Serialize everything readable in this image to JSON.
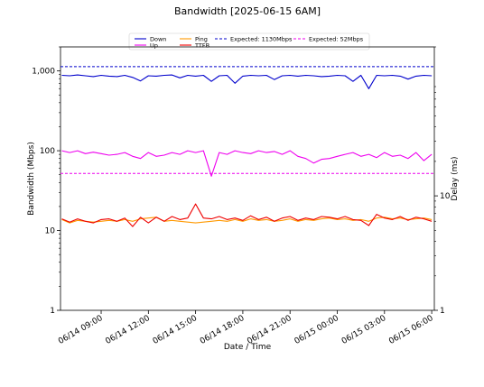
{
  "chart_data": {
    "type": "line",
    "title": "Bandwidth [2025-06-15 6AM]",
    "xlabel": "Date / Time",
    "ylabel": "Bandwidth (Mbps)",
    "y2label": "Delay (ms)",
    "y_scale": "log",
    "y2_scale": "log",
    "ylim": [
      1,
      2000
    ],
    "y2lim": [
      1,
      200
    ],
    "xlim": [
      "2025-06-14 06:25",
      "2025-06-15 06:10"
    ],
    "x_ticks": [
      "06/14 09:00",
      "06/14 12:00",
      "06/14 15:00",
      "06/14 18:00",
      "06/14 21:00",
      "06/15 00:00",
      "06/15 03:00",
      "06/15 06:00"
    ],
    "y_ticks": [
      "1",
      "10",
      "100",
      "1,000"
    ],
    "y2_ticks": [
      "1",
      "10"
    ],
    "grid": false,
    "legend_position": "top",
    "times": [
      "06/14 06:30",
      "06/14 07:00",
      "06/14 07:30",
      "06/14 08:00",
      "06/14 08:30",
      "06/14 09:00",
      "06/14 09:30",
      "06/14 10:00",
      "06/14 10:30",
      "06/14 11:00",
      "06/14 11:30",
      "06/14 12:00",
      "06/14 12:30",
      "06/14 13:00",
      "06/14 13:30",
      "06/14 14:00",
      "06/14 14:30",
      "06/14 15:00",
      "06/14 15:30",
      "06/14 16:00",
      "06/14 16:30",
      "06/14 17:00",
      "06/14 17:30",
      "06/14 18:00",
      "06/14 18:30",
      "06/14 19:00",
      "06/14 19:30",
      "06/14 20:00",
      "06/14 20:30",
      "06/14 21:00",
      "06/14 21:30",
      "06/14 22:00",
      "06/14 22:30",
      "06/14 23:00",
      "06/14 23:30",
      "06/15 00:00",
      "06/15 00:30",
      "06/15 01:00",
      "06/15 01:30",
      "06/15 02:00",
      "06/15 02:30",
      "06/15 03:00",
      "06/15 03:30",
      "06/15 04:00",
      "06/15 04:30",
      "06/15 05:00",
      "06/15 05:30",
      "06/15 06:00"
    ],
    "series": [
      {
        "name": "Down",
        "axis": "left",
        "color": "#0000cc",
        "style": "solid",
        "values": [
          880,
          870,
          890,
          870,
          850,
          880,
          860,
          850,
          880,
          830,
          750,
          870,
          860,
          880,
          890,
          820,
          880,
          860,
          880,
          740,
          870,
          880,
          700,
          860,
          880,
          870,
          880,
          780,
          870,
          880,
          860,
          880,
          870,
          850,
          860,
          880,
          870,
          740,
          880,
          600,
          880,
          870,
          880,
          860,
          790,
          860,
          880,
          870
        ]
      },
      {
        "name": "Up",
        "axis": "left",
        "color": "#ee00ee",
        "style": "solid",
        "values": [
          100,
          95,
          100,
          92,
          96,
          92,
          88,
          90,
          95,
          85,
          80,
          95,
          85,
          88,
          95,
          90,
          100,
          95,
          100,
          48,
          95,
          90,
          100,
          95,
          92,
          100,
          95,
          98,
          90,
          100,
          85,
          80,
          70,
          78,
          80,
          85,
          90,
          95,
          85,
          90,
          82,
          95,
          85,
          88,
          80,
          95,
          75,
          90
        ]
      },
      {
        "name": "Ping",
        "axis": "right",
        "color": "#ff9900",
        "style": "solid",
        "values": [
          6.2,
          5.8,
          6.1,
          6.0,
          5.9,
          6.0,
          6.1,
          6.0,
          6.2,
          6.0,
          6.3,
          6.4,
          6.5,
          6.0,
          6.1,
          6.0,
          5.9,
          5.8,
          5.9,
          6.0,
          6.1,
          6.0,
          6.2,
          6.0,
          6.3,
          6.1,
          6.2,
          6.0,
          6.1,
          6.3,
          6.0,
          6.2,
          6.1,
          6.3,
          6.4,
          6.2,
          6.3,
          6.1,
          6.2,
          6.0,
          6.4,
          6.5,
          6.3,
          6.4,
          6.2,
          6.3,
          6.4,
          6.2
        ]
      },
      {
        "name": "TTFB",
        "axis": "right",
        "color": "#ee0000",
        "style": "solid",
        "values": [
          6.3,
          5.9,
          6.3,
          6.0,
          5.8,
          6.2,
          6.3,
          6.0,
          6.4,
          5.4,
          6.5,
          5.8,
          6.5,
          6.0,
          6.6,
          6.2,
          6.4,
          8.5,
          6.4,
          6.3,
          6.6,
          6.2,
          6.4,
          6.1,
          6.7,
          6.2,
          6.5,
          6.0,
          6.4,
          6.6,
          6.1,
          6.4,
          6.2,
          6.6,
          6.5,
          6.3,
          6.6,
          6.2,
          6.1,
          5.5,
          6.9,
          6.4,
          6.2,
          6.6,
          6.1,
          6.5,
          6.3,
          6.0
        ]
      },
      {
        "name": "Expected: 1130Mbps",
        "axis": "left",
        "color": "#0000cc",
        "style": "dashed",
        "values": [
          1130
        ]
      },
      {
        "name": "Expected: 52Mbps",
        "axis": "left",
        "color": "#ee00ee",
        "style": "dashed",
        "values": [
          52
        ]
      }
    ]
  }
}
